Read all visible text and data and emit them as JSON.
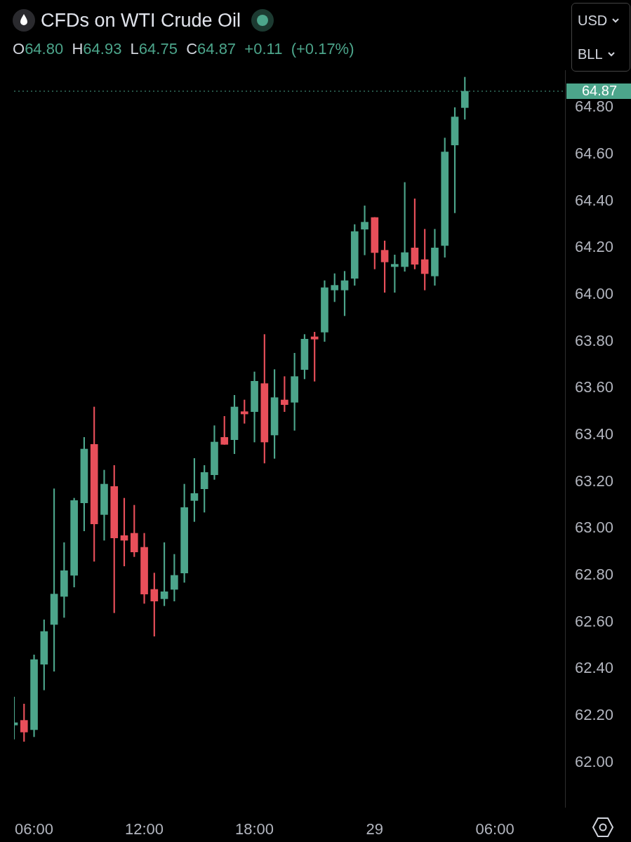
{
  "chart_data": {
    "type": "candlestick",
    "title": "CFDs on WTI Crude Oil",
    "subtitle": "O64.80 H64.93 L64.75 C64.87 +0.11 (+0.17%)",
    "categories": [
      null,
      null,
      "06:00",
      null,
      null,
      null,
      null,
      null,
      null,
      null,
      null,
      null,
      null,
      "12:00",
      null,
      null,
      null,
      null,
      null,
      null,
      null,
      null,
      null,
      null,
      "18:00",
      null,
      null,
      null,
      null,
      null,
      null,
      null,
      null,
      null,
      null,
      null,
      "29",
      null,
      null,
      null,
      null,
      null,
      null,
      null,
      null,
      null,
      null,
      null,
      "06:00",
      null,
      null,
      null,
      null,
      null,
      null,
      null
    ],
    "ohlc": [
      [
        62.16,
        62.28,
        62.1,
        62.17
      ],
      [
        62.18,
        62.25,
        62.09,
        62.13
      ],
      [
        62.14,
        62.46,
        62.11,
        62.44
      ],
      [
        62.42,
        62.61,
        62.31,
        62.56
      ],
      [
        62.59,
        63.17,
        62.39,
        62.72
      ],
      [
        62.71,
        62.94,
        62.62,
        62.82
      ],
      [
        62.8,
        63.13,
        62.75,
        63.12
      ],
      [
        63.11,
        63.39,
        62.99,
        63.34
      ],
      [
        63.36,
        63.52,
        62.86,
        63.02
      ],
      [
        63.06,
        63.25,
        62.95,
        63.19
      ],
      [
        63.18,
        63.27,
        62.64,
        62.96
      ],
      [
        62.97,
        63.13,
        62.84,
        62.95
      ],
      [
        62.98,
        63.1,
        62.88,
        62.9
      ],
      [
        62.92,
        62.98,
        62.68,
        62.72
      ],
      [
        62.74,
        62.81,
        62.54,
        62.69
      ],
      [
        62.7,
        62.94,
        62.67,
        62.73
      ],
      [
        62.74,
        62.89,
        62.69,
        62.8
      ],
      [
        62.81,
        63.19,
        62.77,
        63.09
      ],
      [
        63.12,
        63.3,
        63.03,
        63.15
      ],
      [
        63.17,
        63.27,
        63.07,
        63.24
      ],
      [
        63.23,
        63.44,
        63.21,
        63.37
      ],
      [
        63.39,
        63.48,
        63.36,
        63.36
      ],
      [
        63.38,
        63.57,
        63.32,
        63.52
      ],
      [
        63.5,
        63.55,
        63.45,
        63.49
      ],
      [
        63.5,
        63.67,
        63.37,
        63.63
      ],
      [
        63.62,
        63.83,
        63.28,
        63.37
      ],
      [
        63.4,
        63.68,
        63.3,
        63.56
      ],
      [
        63.55,
        63.65,
        63.5,
        63.53
      ],
      [
        63.54,
        63.75,
        63.42,
        63.65
      ],
      [
        63.68,
        63.83,
        63.64,
        63.81
      ],
      [
        63.82,
        63.84,
        63.63,
        63.81
      ],
      [
        63.84,
        64.06,
        63.8,
        64.03
      ],
      [
        64.02,
        64.09,
        63.97,
        64.04
      ],
      [
        64.02,
        64.1,
        63.91,
        64.06
      ],
      [
        64.07,
        64.3,
        64.04,
        64.27
      ],
      [
        64.28,
        64.38,
        64.17,
        64.31
      ],
      [
        64.33,
        64.33,
        64.11,
        64.18
      ],
      [
        64.19,
        64.23,
        64.01,
        64.14
      ],
      [
        64.12,
        64.17,
        64.01,
        64.13
      ],
      [
        64.12,
        64.48,
        64.1,
        64.18
      ],
      [
        64.2,
        64.41,
        64.11,
        64.13
      ],
      [
        64.15,
        64.28,
        64.02,
        64.09
      ],
      [
        64.08,
        64.28,
        64.04,
        64.2
      ],
      [
        64.21,
        64.67,
        64.16,
        64.61
      ],
      [
        64.64,
        64.8,
        64.35,
        64.76
      ],
      [
        64.8,
        64.93,
        64.75,
        64.87
      ],
      null,
      null,
      null,
      null,
      null,
      null,
      null,
      null,
      null,
      null
    ],
    "colors": [
      "#4ca58b",
      "#e84f5a",
      "#4ca58b",
      "#4ca58b",
      "#4ca58b",
      "#4ca58b",
      "#4ca58b",
      "#4ca58b",
      "#e84f5a",
      "#4ca58b",
      "#e84f5a",
      "#e84f5a",
      "#e84f5a",
      "#e84f5a",
      "#e84f5a",
      "#4ca58b",
      "#4ca58b",
      "#4ca58b",
      "#4ca58b",
      "#4ca58b",
      "#4ca58b",
      "#e84f5a",
      "#4ca58b",
      "#e84f5a",
      "#4ca58b",
      "#e84f5a",
      "#4ca58b",
      "#e84f5a",
      "#4ca58b",
      "#4ca58b",
      "#e84f5a",
      "#4ca58b",
      "#4ca58b",
      "#4ca58b",
      "#4ca58b",
      "#4ca58b",
      "#e84f5a",
      "#e84f5a",
      "#4ca58b",
      "#4ca58b",
      "#e84f5a",
      "#e84f5a",
      "#4ca58b",
      "#4ca58b",
      "#4ca58b",
      "#4ca58b",
      null,
      null,
      null,
      null,
      null,
      null,
      null,
      null,
      null,
      null
    ],
    "ylim": [
      61.81,
      64.96
    ],
    "yticks": [
      {
        "value": 62,
        "label": "62.00"
      },
      {
        "value": 62.2,
        "label": "62.20"
      },
      {
        "value": 62.4,
        "label": "62.40"
      },
      {
        "value": 62.6,
        "label": "62.60"
      },
      {
        "value": 62.8,
        "label": "62.80"
      },
      {
        "value": 63,
        "label": "63.00"
      },
      {
        "value": 63.2,
        "label": "63.20"
      },
      {
        "value": 63.4,
        "label": "63.40"
      },
      {
        "value": 63.6,
        "label": "63.60"
      },
      {
        "value": 63.8,
        "label": "63.80"
      },
      {
        "value": 64,
        "label": "64.00"
      },
      {
        "value": 64.2,
        "label": "64.20"
      },
      {
        "value": 64.4,
        "label": "64.40"
      },
      {
        "value": 64.6,
        "label": "64.60"
      },
      {
        "value": 64.8,
        "label": "64.80"
      }
    ],
    "ref_lines": [
      {
        "axis": "y",
        "value": 64.87,
        "label": "64.87",
        "color": "#4ca58b",
        "line_style": "dotted"
      }
    ],
    "annotations": [
      "USD",
      "BLL"
    ],
    "legend": false
  }
}
